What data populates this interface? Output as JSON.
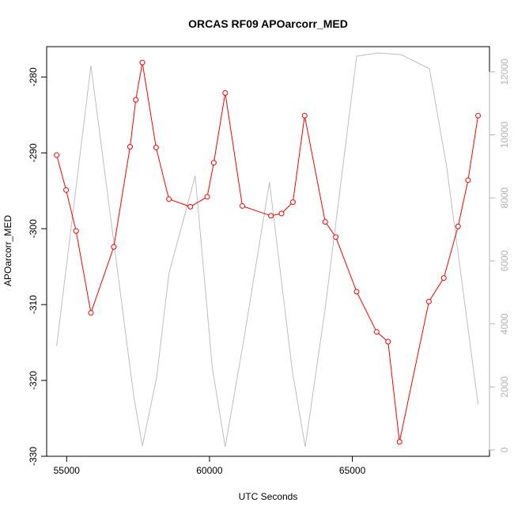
{
  "chart_data": {
    "type": "line",
    "title": "ORCAS RF09 APOarcorr_MED",
    "xlabel": "UTC Seconds",
    "ylabel": "APOarcorr_MED",
    "xlim": [
      54300,
      69800
    ],
    "ylim": [
      -330,
      -276
    ],
    "y2lim": [
      -200,
      12800
    ],
    "x_ticks": [
      55000,
      60000,
      65000
    ],
    "x_tick_labels": [
      "55000",
      "60000",
      "65000"
    ],
    "y_ticks": [
      -330,
      -320,
      -310,
      -300,
      -290,
      -280
    ],
    "y_tick_labels": [
      "-330",
      "-320",
      "-310",
      "-300",
      "-290",
      "-280"
    ],
    "y2_ticks": [
      0,
      2000,
      4000,
      6000,
      8000,
      10000,
      12000
    ],
    "y2_tick_labels": [
      "0",
      "2000",
      "4000",
      "6000",
      "8000",
      "10000",
      "12000"
    ],
    "grid": false,
    "series": [
      {
        "axis": "left",
        "color": "#ff0000",
        "marker": "circle",
        "x": [
          54650,
          54980,
          55330,
          55850,
          56650,
          57220,
          57420,
          57650,
          58130,
          58580,
          59330,
          59920,
          60150,
          60550,
          61150,
          62150,
          62520,
          62920,
          63330,
          64050,
          64420,
          65150,
          65850,
          66250,
          66650,
          67680,
          68200,
          68700,
          69050,
          69400
        ],
        "y": [
          -290.3,
          -294.9,
          -300.3,
          -311.1,
          -302.4,
          -289.2,
          -283.0,
          -278.1,
          -289.3,
          -296.1,
          -297.1,
          -295.8,
          -291.3,
          -282.1,
          -297.0,
          -298.3,
          -298.0,
          -296.5,
          -285.1,
          -299.1,
          -301.1,
          -308.3,
          -313.6,
          -314.9,
          -328.1,
          -309.6,
          -306.5,
          -299.7,
          -293.6,
          -285.1
        ]
      },
      {
        "axis": "right",
        "color": "#bebebe",
        "marker": "none",
        "x": [
          54650,
          55850,
          57350,
          57650,
          58150,
          58580,
          59500,
          60100,
          60550,
          61200,
          62100,
          62900,
          63350,
          64050,
          65150,
          65900,
          66700,
          67700,
          68300,
          69400
        ],
        "y": [
          3300,
          12200,
          1700,
          130,
          2300,
          5600,
          8700,
          2600,
          100,
          3500,
          8500,
          2500,
          100,
          4500,
          12500,
          12600,
          12550,
          12100,
          9000,
          1450
        ]
      }
    ]
  }
}
